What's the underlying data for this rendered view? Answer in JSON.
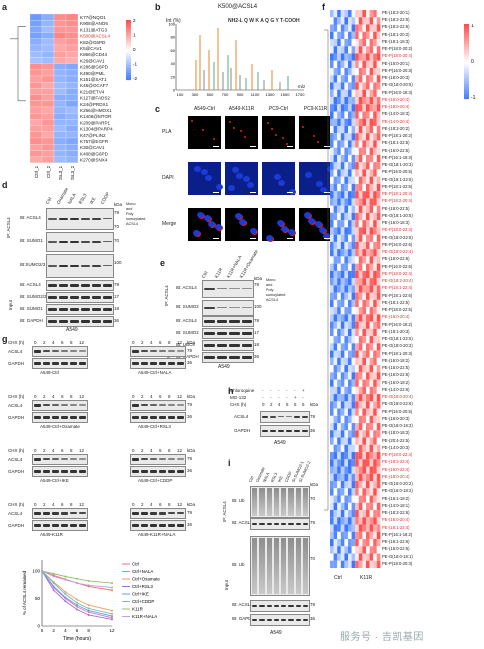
{
  "panels": {
    "a": {
      "letter": "a",
      "columns": [
        "Ctrl_1",
        "Ctrl_2",
        "RSL3_1",
        "RSL3_2"
      ],
      "rows": [
        "K77@NQO1",
        "K908@ANO6",
        "K131@ATG3",
        "K500@ACSL4",
        "K82@G6PD",
        "K5@CAV1",
        "K866@CD44",
        "K26@CAV1",
        "K286@G6PD",
        "K490@PML",
        "K161@SAT1",
        "K46@OCAF7",
        "K21@ETV4",
        "K127@FADS2",
        "K24@PRDX1",
        "K256@HMOX1",
        "K1406@MTOR",
        "K209@PARP1",
        "K1304@PARP4",
        "K47@PLIN2",
        "K757@EGFR",
        "K30@CAV1",
        "K408@G6PD",
        "K270@SNX4"
      ],
      "values": [
        [
          -1.5,
          -1.2,
          1.3,
          1.4
        ],
        [
          -1.4,
          -1.1,
          1.2,
          1.3
        ],
        [
          -1.3,
          -1.0,
          1.2,
          1.2
        ],
        [
          -1.4,
          -1.2,
          1.4,
          1.3
        ],
        [
          -1.2,
          -1.0,
          1.1,
          1.2
        ],
        [
          -1.1,
          -1.0,
          1.0,
          1.1
        ],
        [
          -1.0,
          -1.1,
          1.1,
          1.0
        ],
        [
          -0.9,
          -1.0,
          1.0,
          0.9
        ],
        [
          1.3,
          1.2,
          -1.2,
          -1.3
        ],
        [
          1.2,
          1.1,
          -1.1,
          -1.2
        ],
        [
          1.1,
          1.2,
          -1.1,
          -1.2
        ],
        [
          1.2,
          1.0,
          -1.0,
          -1.1
        ],
        [
          1.1,
          1.1,
          -1.0,
          -1.2
        ],
        [
          1.3,
          1.1,
          -1.2,
          -1.2
        ],
        [
          1.2,
          1.2,
          -1.1,
          -1.3
        ],
        [
          1.1,
          1.0,
          -1.1,
          -1.0
        ],
        [
          1.2,
          1.1,
          -1.2,
          -1.1
        ],
        [
          1.0,
          1.2,
          -1.1,
          -1.1
        ],
        [
          1.1,
          1.1,
          -1.0,
          -1.2
        ],
        [
          1.2,
          1.0,
          -1.1,
          -1.1
        ],
        [
          1.3,
          1.2,
          -1.2,
          -1.3
        ],
        [
          1.1,
          1.2,
          -1.1,
          -1.2
        ],
        [
          1.2,
          1.1,
          -1.1,
          -1.2
        ],
        [
          1.0,
          1.1,
          -1.0,
          -1.1
        ]
      ],
      "legend": [
        "2",
        "1",
        "0",
        "-1",
        "-2"
      ]
    },
    "b": {
      "letter": "b",
      "title": "K500@ACSL4",
      "ylabel": "Int (%)",
      "xlabel": "m/z",
      "sequence": "NH2-L Q W K A Q G Y T-COOH",
      "xticks": [
        "100",
        "300",
        "500",
        "700",
        "900",
        "1100",
        "1300",
        "1500",
        "1700"
      ],
      "yticks": [
        "100",
        "80",
        "60",
        "40",
        "20",
        "0"
      ]
    },
    "c": {
      "letter": "c",
      "columns": [
        "A549-Ctrl",
        "A549-K11R",
        "PC9-Ctrl",
        "PC9-K11R"
      ],
      "rows": [
        "PLA",
        "DAPI",
        "Merge"
      ]
    },
    "d": {
      "letter": "d",
      "lanes": [
        "Ctrl",
        "Oxamate",
        "NALA",
        "RSL3",
        "IKE",
        "CDDP"
      ],
      "ip_label": "IP: ACSL4",
      "input_label": "Input",
      "blots": [
        "IB: ACSL4",
        "IB: SUMO1",
        "IB:SUMO2/3",
        "IB: ACSL4",
        "IB: SUMO2/3",
        "IB: SUMO1",
        "IB: GAPDH"
      ],
      "kda": [
        "kDa",
        "79",
        "70",
        "70",
        "100",
        "79",
        "17",
        "18",
        "36"
      ],
      "note": "Mono and Poly sumoylated ACSL4",
      "cell": "A549"
    },
    "e": {
      "letter": "e",
      "lanes": [
        "Ctrl",
        "K11R",
        "K11R+NALA",
        "K11R+Oxamate"
      ],
      "ip_label": "IP: ACSL4",
      "input_label": "Input",
      "blots": [
        "IB: ACSL4",
        "IB: SUMO2",
        "IB: ACSL4",
        "IB: SUMO2",
        "IB: UBC9",
        "IB: GAPDH"
      ],
      "kda": [
        "kDa",
        "79",
        "100",
        "79",
        "17",
        "18",
        "36"
      ],
      "note": "Mono and Poly sumoylated ACSL4",
      "cell": "A549"
    },
    "f": {
      "letter": "f",
      "columns": [
        "Ctrl",
        "K11R"
      ],
      "legend": [
        "1",
        "0",
        "-1"
      ],
      "lipids": [
        {
          "name": "PE-(18:2-20:1)",
          "red": false
        },
        {
          "name": "PE-(18:2-22:5)",
          "red": false
        },
        {
          "name": "PE-(18:2-22:6)",
          "red": false
        },
        {
          "name": "PE-(18:1-20:2)",
          "red": false
        },
        {
          "name": "PE-(18:1-18:3)",
          "red": false
        },
        {
          "name": "PE-P(18:0-20:2)",
          "red": false
        },
        {
          "name": "PE-P(18:0-20:4)",
          "red": true
        },
        {
          "name": "PE-(16:0-20:1)",
          "red": false
        },
        {
          "name": "PE-P(16:0-20:3)",
          "red": false
        },
        {
          "name": "PE-(18:0-20:3)",
          "red": false
        },
        {
          "name": "PE-O(16:0-20:5)",
          "red": false
        },
        {
          "name": "PE-P(16:0-18:3)",
          "red": false
        },
        {
          "name": "PE-(16:0-20:4)",
          "red": true
        },
        {
          "name": "PE-(18:0-20:4)",
          "red": true
        },
        {
          "name": "PE-(14:0-18:3)",
          "red": false
        },
        {
          "name": "PE-(14:0-20:4)",
          "red": true
        },
        {
          "name": "PE-(18:2-20:2)",
          "red": false
        },
        {
          "name": "PE-P(18:1-20:2)",
          "red": false
        },
        {
          "name": "PE-(18:1-22:5)",
          "red": false
        },
        {
          "name": "PE-(16:0-22:5)",
          "red": false
        },
        {
          "name": "PE-P(16:1-18:3)",
          "red": false
        },
        {
          "name": "PE-O(18:1-20:3)",
          "red": false
        },
        {
          "name": "PE-P(16:0-20:5)",
          "red": false
        },
        {
          "name": "PE-O(16:1-22:5)",
          "red": false
        },
        {
          "name": "PE-P(18:1-22:5)",
          "red": false
        },
        {
          "name": "PE-P(18:1-20:4)",
          "red": true
        },
        {
          "name": "PE-P(18:2-20:4)",
          "red": true
        },
        {
          "name": "PE-(18:0-22:5)",
          "red": false
        },
        {
          "name": "PE-O(18:1-20:5)",
          "red": false
        },
        {
          "name": "PE-(16:0-18:3)",
          "red": false
        },
        {
          "name": "PE-P(18:0-22:4)",
          "red": true
        },
        {
          "name": "PE-O(18:0-22:5)",
          "red": false
        },
        {
          "name": "PE-P(16:0-22:6)",
          "red": false
        },
        {
          "name": "PE-O(18:0-22:4)",
          "red": true
        },
        {
          "name": "PE-(18:0-22:6)",
          "red": false
        },
        {
          "name": "PE-P(16:0-22:6)",
          "red": false
        },
        {
          "name": "PE-P(18:0-22:4)",
          "red": true
        },
        {
          "name": "PE-O(18:2-20:4)",
          "red": true
        },
        {
          "name": "PE-P(18:1-22:4)",
          "red": true
        },
        {
          "name": "PE-P(18:1-22:6)",
          "red": false
        },
        {
          "name": "PE-(18:1-22:5)",
          "red": false
        },
        {
          "name": "PE-P(18:0-22:5)",
          "red": false
        },
        {
          "name": "PE-(16:0-20:4)",
          "red": true
        },
        {
          "name": "PE-P(16:0-18:2)",
          "red": false
        },
        {
          "name": "PE-(18:1-20:3)",
          "red": false
        },
        {
          "name": "PE-O(18:1-22:5)",
          "red": false
        },
        {
          "name": "PE-O(18:0-20:3)",
          "red": false
        },
        {
          "name": "PE-P(18:1-20:3)",
          "red": false
        },
        {
          "name": "PE-(16:0-18:2)",
          "red": false
        },
        {
          "name": "PE-(16:0-22:5)",
          "red": false
        },
        {
          "name": "PE-(16:0-22:6)",
          "red": false
        },
        {
          "name": "PE-(16:0-18:2)",
          "red": false
        },
        {
          "name": "PE-(14:0-22:6)",
          "red": false
        },
        {
          "name": "PE-O(18:0-20:4)",
          "red": true
        },
        {
          "name": "PE-O(18:0-22:6)",
          "red": false
        },
        {
          "name": "PE-P(16:0-20:5)",
          "red": false
        },
        {
          "name": "PE-(16:0-20:3)",
          "red": false
        },
        {
          "name": "PE-O(16:0-18:3)",
          "red": false
        },
        {
          "name": "PE-(18:0-18:3)",
          "red": false
        },
        {
          "name": "PE-(20:4-22:5)",
          "red": false
        },
        {
          "name": "PE-(14:0-20:3)",
          "red": false
        },
        {
          "name": "PE-P(18:0-22:4)",
          "red": true
        },
        {
          "name": "PE-(18:2-22:4)",
          "red": true
        },
        {
          "name": "PE-(16:0-22:4)",
          "red": true
        },
        {
          "name": "PE-(18:0-20:4)",
          "red": true
        },
        {
          "name": "PE-O(16:0-20:2)",
          "red": false
        },
        {
          "name": "PE-O(16:0-18:2)",
          "red": false
        },
        {
          "name": "PE-(16:1-18:2)",
          "red": false
        },
        {
          "name": "PE-(14:0-18:1)",
          "red": false
        },
        {
          "name": "PE-(18:2-22:6)",
          "red": false
        },
        {
          "name": "PE-(16:0-20:4)",
          "red": true
        },
        {
          "name": "PE-(18:1-22:4)",
          "red": true
        },
        {
          "name": "PE-P(16:1-18:2)",
          "red": false
        },
        {
          "name": "PE-(16:1-22:6)",
          "red": false
        },
        {
          "name": "PE-(16:0-22:5)",
          "red": false
        },
        {
          "name": "PE-O(16:0-18:1)",
          "red": false
        },
        {
          "name": "PE-P(18:0-20:3)",
          "red": false
        }
      ]
    },
    "g": {
      "letter": "g",
      "cht": "CHX (h)",
      "times": [
        "0",
        "2",
        "4",
        "6",
        "8",
        "12"
      ],
      "blots": [
        {
          "left": "A549-Ctrl",
          "right": "A549-Ctrl+NALA"
        },
        {
          "left": "A549-Ctrl+Oxamate",
          "right": "A549-Ctrl+RSL3"
        },
        {
          "left": "A549-Ctrl+IKE",
          "right": "A549-Ctrl+CDDP"
        },
        {
          "left": "A549-K11R",
          "right": "A549-K11R+NALA"
        }
      ],
      "proteins": [
        "ACSL4",
        "GAPDH"
      ],
      "kda": [
        "kDa",
        "79",
        "36"
      ]
    },
    "h": {
      "letter": "h",
      "rows": [
        {
          "label": "Chloroquine",
          "vals": [
            "-",
            "-",
            "-",
            "-",
            "-",
            "+"
          ]
        },
        {
          "label": "MG-132",
          "vals": [
            "-",
            "-",
            "-",
            "-",
            "+",
            "-"
          ]
        },
        {
          "label": "CHX (h)",
          "vals": [
            "0",
            "2",
            "4",
            "6",
            "6",
            "6"
          ]
        }
      ],
      "proteins": [
        "ACSL4",
        "GAPDH"
      ],
      "kda": [
        "kDa",
        "79",
        "36"
      ],
      "cell": "A549"
    },
    "i": {
      "letter": "i",
      "lanes": [
        "Ctrl",
        "Oxamate",
        "NALA",
        "RSL3",
        "IKE",
        "CDDP",
        "Si-SUMO2-1",
        "Si-SUMO2-2"
      ],
      "ip_label": "IP: ACSL4",
      "input_label": "Input",
      "blots": [
        "IB: Ub",
        "IB: ACSL4",
        "IB: Ub",
        "IB: ACSL4",
        "IB: GAPDH"
      ],
      "kda": [
        "kDa",
        "70",
        "79",
        "70",
        "79",
        "36"
      ],
      "cell": "A549"
    }
  },
  "chart_data": {
    "type": "line",
    "xlabel": "Time (hours)",
    "ylabel": "% of ACSL4 remained",
    "x": [
      0,
      2,
      4,
      6,
      8,
      12
    ],
    "ylim": [
      0,
      120
    ],
    "yticks": [
      "0",
      "50",
      "100"
    ],
    "xticks": [
      "0",
      "2",
      "4",
      "6",
      "8",
      "12"
    ],
    "legend_position": "right",
    "series": [
      {
        "name": "Ctrl",
        "color": "#e87070",
        "values": [
          100,
          92,
          85,
          78,
          72,
          65
        ]
      },
      {
        "name": "Ctrl+NALA",
        "color": "#e07bb8",
        "values": [
          100,
          70,
          50,
          35,
          25,
          15
        ]
      },
      {
        "name": "Ctrl+Oxamate",
        "color": "#f0a060",
        "values": [
          100,
          80,
          62,
          48,
          38,
          28
        ]
      },
      {
        "name": "Ctrl+RSL3",
        "color": "#a070d8",
        "values": [
          100,
          65,
          45,
          30,
          20,
          12
        ]
      },
      {
        "name": "Ctrl+IKE",
        "color": "#6a9ae0",
        "values": [
          100,
          72,
          52,
          38,
          28,
          18
        ]
      },
      {
        "name": "Ctrl+CDDP",
        "color": "#70c0c0",
        "values": [
          100,
          78,
          58,
          42,
          32,
          22
        ]
      },
      {
        "name": "K11R",
        "color": "#90c070",
        "values": [
          100,
          95,
          90,
          86,
          82,
          78
        ]
      },
      {
        "name": "K11R+NALA",
        "color": "#c0a0e0",
        "values": [
          100,
          90,
          84,
          78,
          74,
          70
        ]
      }
    ]
  },
  "watermark": "服务号 · 吉凯基因"
}
